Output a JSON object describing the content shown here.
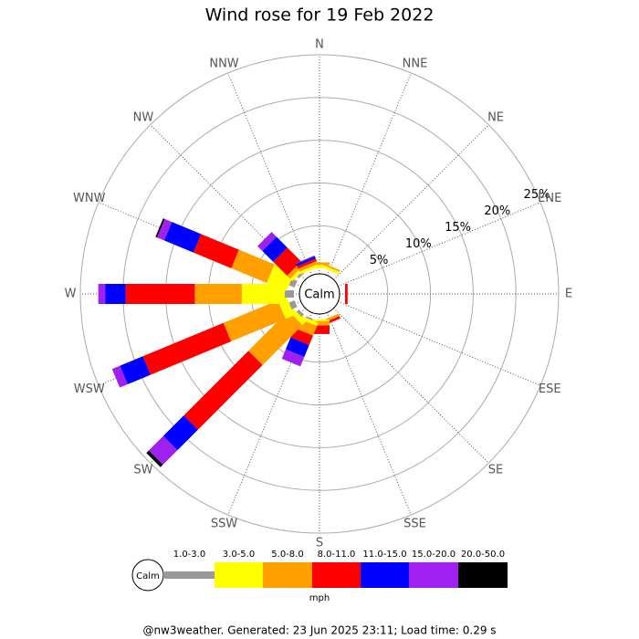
{
  "chart_data": {
    "type": "windrose",
    "title": "Wind rose for 19 Feb 2022",
    "categories": [
      "N",
      "NNE",
      "NE",
      "ENE",
      "E",
      "ESE",
      "SE",
      "SSE",
      "S",
      "SSW",
      "SW",
      "WSW",
      "W",
      "WNW",
      "NW",
      "NNW"
    ],
    "series": [
      {
        "name": "1.0-3.0",
        "color": "#999999",
        "values": [
          0,
          0,
          0,
          0,
          0,
          0,
          0,
          0,
          0,
          0.2,
          0.4,
          0.7,
          1.1,
          0.7,
          0.3,
          0
        ]
      },
      {
        "name": "3.0-5.0",
        "color": "#ffff00",
        "values": [
          0.4,
          0.3,
          0,
          0,
          0,
          0,
          0,
          0,
          0.2,
          0.4,
          0.6,
          1.1,
          5.0,
          2.5,
          0.4,
          0.3
        ]
      },
      {
        "name": "5.0-8.0",
        "color": "#ffa000",
        "values": [
          0.3,
          0.2,
          0,
          0,
          0,
          0,
          0,
          0.3,
          0.5,
          1.2,
          6.6,
          6.9,
          5.5,
          4.5,
          0.5,
          0.4
        ]
      },
      {
        "name": "8.0-11.0",
        "color": "#ff0000",
        "values": [
          0,
          0,
          0,
          0,
          0.3,
          0,
          0,
          0.3,
          1.0,
          1.2,
          10.7,
          10.2,
          8.1,
          4.8,
          2.3,
          0.3
        ]
      },
      {
        "name": "11.0-15.0",
        "color": "#0000ff",
        "values": [
          0,
          0,
          0,
          0,
          0,
          0,
          0,
          0,
          0,
          1.5,
          3.4,
          2.9,
          2.4,
          3.7,
          1.8,
          0.3
        ]
      },
      {
        "name": "15.0-20.0",
        "color": "#a020f0",
        "values": [
          0,
          0,
          0,
          0,
          0,
          0,
          0,
          0,
          0,
          1.2,
          2.4,
          1.0,
          0.8,
          0.9,
          0.8,
          0.1
        ]
      },
      {
        "name": "20.0-50.0",
        "color": "#000000",
        "values": [
          0,
          0,
          0,
          0,
          0,
          0,
          0,
          0,
          0,
          0,
          0.4,
          0,
          0,
          0.2,
          0,
          0
        ]
      }
    ],
    "ylim": [
      0,
      25
    ],
    "yticks": [
      {
        "value": 5,
        "label": "5%"
      },
      {
        "value": 10,
        "label": "10%"
      },
      {
        "value": 15,
        "label": "15%"
      },
      {
        "value": 20,
        "label": "20%"
      },
      {
        "value": 25,
        "label": "25%"
      }
    ],
    "calm_label": "Calm",
    "legend_unit": "mph",
    "footer": "@nw3weather. Generated: 23 Jun 2025 23:11; Load time: 0.29 s"
  }
}
